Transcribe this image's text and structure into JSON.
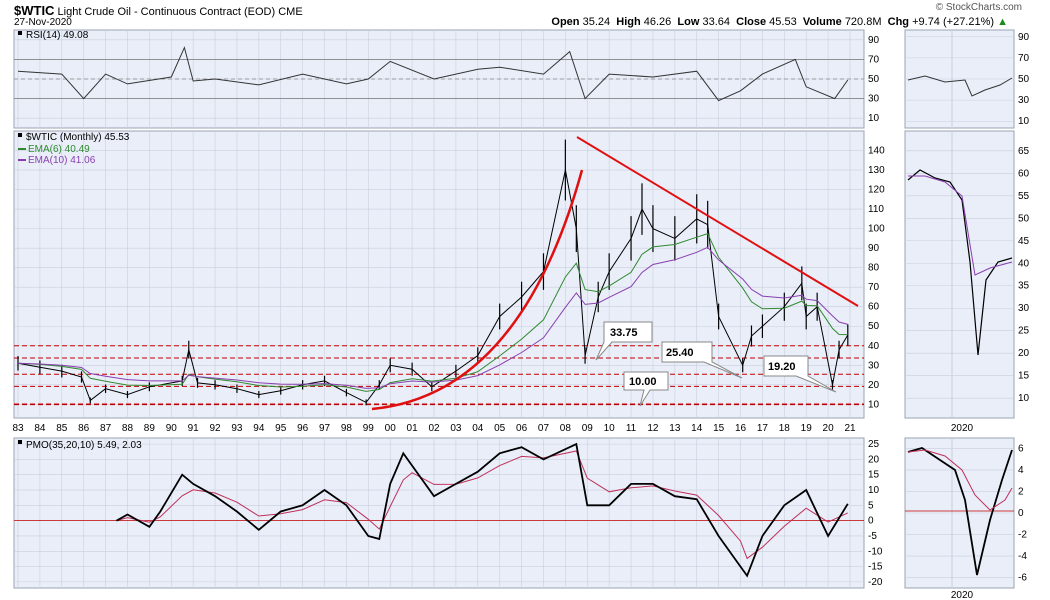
{
  "header": {
    "symbol": "$WTIC",
    "description": "Light Crude Oil - Continuous Contract (EOD)",
    "exchange": "CME",
    "date": "27-Nov-2020",
    "watermark": "© StockCharts.com",
    "open_label": "Open",
    "open": "35.24",
    "high_label": "High",
    "high": "46.26",
    "low_label": "Low",
    "low": "33.64",
    "close_label": "Close",
    "close": "45.53",
    "volume_label": "Volume",
    "volume": "720.8M",
    "chg_label": "Chg",
    "chg": "+9.74 (+27.21%)",
    "chg_arrow": "▲"
  },
  "colors": {
    "background": "#e9eef9",
    "price": "#000000",
    "ema6": "#2f8a2f",
    "ema10": "#8a3fb0",
    "trendline": "#e01010",
    "support": "#c00000",
    "pmo_signal": "#c0305a"
  },
  "chart_data": [
    {
      "type": "line",
      "panel": "RSI",
      "legend": "RSI(14) 49.08",
      "ylim": [
        0,
        100
      ],
      "yticks": [
        10,
        30,
        50,
        70,
        90
      ],
      "guides": [
        30,
        50,
        70
      ],
      "x": [
        1983,
        1985,
        1986,
        1987,
        1988,
        1990,
        1990.6,
        1991,
        1992,
        1994,
        1996,
        1998,
        1999,
        2000,
        2002,
        2004,
        2005,
        2007,
        2008.2,
        2008.9,
        2010,
        2012,
        2014,
        2015,
        2016,
        2017,
        2018.5,
        2019,
        2020.3,
        2020.9
      ],
      "values": [
        58,
        55,
        30,
        55,
        45,
        52,
        82,
        48,
        50,
        44,
        55,
        45,
        50,
        68,
        50,
        60,
        62,
        55,
        78,
        30,
        55,
        52,
        58,
        28,
        38,
        55,
        70,
        42,
        30,
        49
      ]
    },
    {
      "type": "line",
      "panel": "price",
      "legend": "$WTIC (Monthly) 45.53",
      "ema6_legend": "EMA(6) 40.49",
      "ema10_legend": "EMA(10) 41.06",
      "yticks": [
        10,
        20,
        30,
        40,
        50,
        60,
        70,
        80,
        90,
        100,
        110,
        120,
        130,
        140
      ],
      "ylim": [
        3,
        150
      ],
      "x": [
        1983,
        1984,
        1985,
        1985.9,
        1986.3,
        1987,
        1988,
        1989,
        1990.5,
        1990.8,
        1991.2,
        1992,
        1993,
        1994,
        1995,
        1996,
        1997,
        1998,
        1998.9,
        1999.5,
        2000,
        2001,
        2001.9,
        2003,
        2004,
        2005,
        2006,
        2007,
        2008.0,
        2008.5,
        2008.9,
        2009.5,
        2010,
        2011,
        2011.5,
        2012,
        2013,
        2014,
        2014.5,
        2015,
        2016.1,
        2016.5,
        2017,
        2018,
        2018.8,
        2019,
        2019.5,
        2020.2,
        2020.5,
        2020.9
      ],
      "values": [
        31,
        29,
        27,
        24,
        12,
        18,
        15,
        19,
        22,
        38,
        21,
        20,
        18,
        15,
        17,
        20,
        22,
        16,
        11,
        20,
        30,
        28,
        19,
        27,
        35,
        55,
        65,
        78,
        130,
        100,
        35,
        65,
        78,
        95,
        110,
        100,
        95,
        105,
        102,
        55,
        30,
        45,
        50,
        60,
        72,
        55,
        60,
        20,
        38,
        45.5
      ]
    },
    {
      "type": "line",
      "panel": "PMO",
      "legend": "PMO(35,20,10) 5.49, 2.03",
      "ylim": [
        -22,
        27
      ],
      "yticks": [
        -20,
        -15,
        -10,
        -5,
        0,
        5,
        10,
        15,
        20,
        25
      ],
      "x": [
        1987.5,
        1988,
        1989,
        1989.5,
        1990.5,
        1991,
        1992,
        1993,
        1994,
        1995,
        1996,
        1997,
        1998,
        1999,
        1999.5,
        2000,
        2000.6,
        2001,
        2002,
        2003,
        2004,
        2005,
        2006,
        2007,
        2008.5,
        2009,
        2010,
        2011,
        2012,
        2013,
        2014,
        2015,
        2016,
        2016.3,
        2017,
        2018,
        2019,
        2020,
        2020.9
      ],
      "values": [
        0,
        2,
        -2,
        3,
        15,
        12,
        8,
        3,
        -3,
        3,
        5,
        10,
        5,
        -5,
        -6,
        12,
        22,
        18,
        8,
        12,
        16,
        22,
        24,
        20,
        25,
        5,
        5,
        12,
        12,
        8,
        7,
        -5,
        -15,
        -18,
        -5,
        5,
        10,
        -5,
        5.5
      ]
    }
  ],
  "x_axis_labels": [
    "83",
    "84",
    "85",
    "86",
    "87",
    "88",
    "89",
    "90",
    "91",
    "92",
    "93",
    "94",
    "95",
    "96",
    "97",
    "98",
    "99",
    "00",
    "01",
    "02",
    "03",
    "04",
    "05",
    "06",
    "07",
    "08",
    "09",
    "10",
    "11",
    "12",
    "13",
    "14",
    "15",
    "16",
    "17",
    "18",
    "19",
    "20",
    "21"
  ],
  "side_axis_label": "2020",
  "side_rsi_ticks": [
    10,
    30,
    50,
    70,
    90
  ],
  "side_price_ticks": [
    10,
    15,
    20,
    25,
    30,
    35,
    40,
    45,
    50,
    55,
    60,
    65
  ],
  "side_pmo_ticks": [
    -6,
    -4,
    -2,
    0,
    2,
    4,
    6
  ],
  "support_levels": [
    10,
    19.2,
    25.4,
    33.75,
    40
  ],
  "callouts": [
    "33.75",
    "25.40",
    "10.00",
    "19.20"
  ]
}
